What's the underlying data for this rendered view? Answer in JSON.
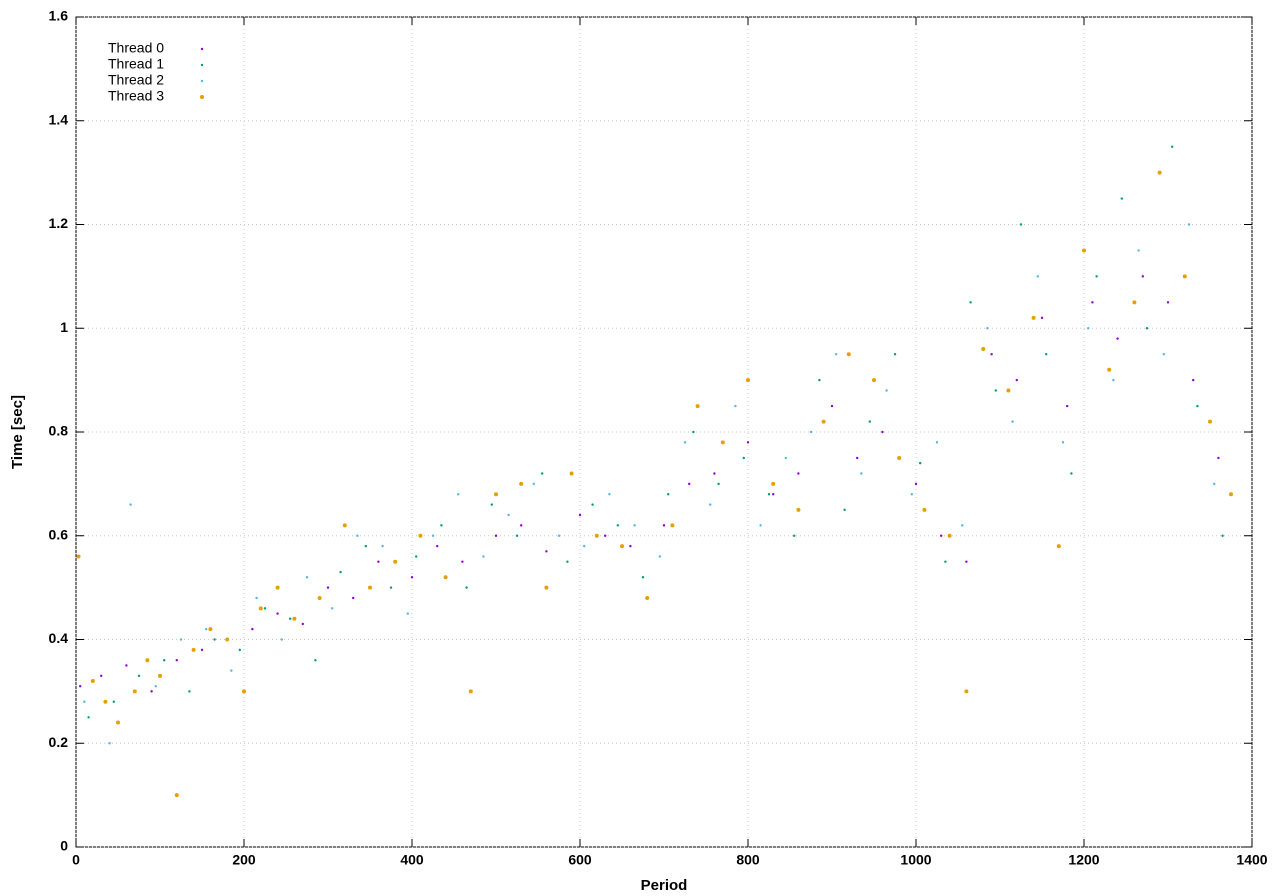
{
  "chart_data": {
    "type": "scatter",
    "x_label": "Period",
    "y_label": "Time [sec]",
    "xlim": [
      0,
      1400
    ],
    "xticks": [
      0,
      200,
      400,
      600,
      800,
      1000,
      1200,
      1400
    ],
    "ylim": [
      0,
      1.6
    ],
    "yticks": [
      0,
      0.2,
      0.4,
      0.6,
      0.8,
      1,
      1.2,
      1.4,
      1.6
    ],
    "grid": true,
    "legend": "top-left",
    "series": [
      {
        "name": "Thread 0",
        "color": "#9400d3",
        "x": [
          5,
          30,
          60,
          90,
          120,
          150,
          180,
          210,
          240,
          270,
          300,
          330,
          360,
          400,
          430,
          460,
          500,
          530,
          560,
          600,
          630,
          660,
          700,
          730,
          760,
          800,
          830,
          860,
          900,
          930,
          960,
          1000,
          1030,
          1060,
          1090,
          1120,
          1150,
          1180,
          1210,
          1240,
          1270,
          1300,
          1330,
          1360
        ],
        "values": [
          0.31,
          0.33,
          0.35,
          0.3,
          0.36,
          0.38,
          0.4,
          0.42,
          0.45,
          0.43,
          0.5,
          0.48,
          0.55,
          0.52,
          0.58,
          0.55,
          0.6,
          0.62,
          0.57,
          0.64,
          0.6,
          0.58,
          0.62,
          0.7,
          0.72,
          0.78,
          0.68,
          0.72,
          0.85,
          0.75,
          0.8,
          0.7,
          0.6,
          0.55,
          0.95,
          0.9,
          1.02,
          0.85,
          1.05,
          0.98,
          1.1,
          1.05,
          0.9,
          0.75
        ]
      },
      {
        "name": "Thread 1",
        "color": "#009e73",
        "x": [
          15,
          45,
          75,
          105,
          135,
          165,
          195,
          225,
          255,
          285,
          315,
          345,
          375,
          405,
          435,
          465,
          495,
          525,
          555,
          585,
          615,
          645,
          675,
          705,
          735,
          765,
          795,
          825,
          855,
          885,
          915,
          945,
          975,
          1005,
          1035,
          1065,
          1095,
          1125,
          1155,
          1185,
          1215,
          1245,
          1275,
          1305,
          1335,
          1365
        ],
        "values": [
          0.25,
          0.28,
          0.33,
          0.36,
          0.3,
          0.4,
          0.38,
          0.46,
          0.44,
          0.36,
          0.53,
          0.58,
          0.5,
          0.56,
          0.62,
          0.5,
          0.66,
          0.6,
          0.72,
          0.55,
          0.66,
          0.62,
          0.52,
          0.68,
          0.8,
          0.7,
          0.75,
          0.68,
          0.6,
          0.9,
          0.65,
          0.82,
          0.95,
          0.74,
          0.55,
          1.05,
          0.88,
          1.2,
          0.95,
          0.72,
          1.1,
          1.25,
          1.0,
          1.35,
          0.85,
          0.6
        ]
      },
      {
        "name": "Thread 2",
        "color": "#56b4e9",
        "x": [
          10,
          40,
          65,
          95,
          125,
          155,
          185,
          215,
          245,
          275,
          305,
          335,
          365,
          395,
          425,
          455,
          485,
          515,
          545,
          575,
          605,
          635,
          665,
          695,
          725,
          755,
          785,
          815,
          845,
          875,
          905,
          935,
          965,
          995,
          1025,
          1055,
          1085,
          1115,
          1145,
          1175,
          1205,
          1235,
          1265,
          1295,
          1325,
          1355
        ],
        "values": [
          0.28,
          0.2,
          0.66,
          0.31,
          0.4,
          0.42,
          0.34,
          0.48,
          0.4,
          0.52,
          0.46,
          0.6,
          0.58,
          0.45,
          0.6,
          0.68,
          0.56,
          0.64,
          0.7,
          0.6,
          0.58,
          0.68,
          0.62,
          0.56,
          0.78,
          0.66,
          0.85,
          0.62,
          0.75,
          0.8,
          0.95,
          0.72,
          0.88,
          0.68,
          0.78,
          0.62,
          1.0,
          0.82,
          1.1,
          0.78,
          1.0,
          0.9,
          1.15,
          0.95,
          1.2,
          0.7
        ]
      },
      {
        "name": "Thread 3",
        "color": "#e69f00",
        "x": [
          3,
          20,
          35,
          50,
          70,
          85,
          100,
          120,
          140,
          160,
          180,
          200,
          220,
          240,
          260,
          290,
          320,
          350,
          380,
          410,
          440,
          470,
          500,
          530,
          560,
          590,
          620,
          650,
          680,
          710,
          740,
          770,
          800,
          830,
          860,
          890,
          920,
          950,
          980,
          1010,
          1040,
          1060,
          1080,
          1110,
          1140,
          1170,
          1200,
          1230,
          1260,
          1290,
          1320,
          1350,
          1375
        ],
        "values": [
          0.56,
          0.32,
          0.28,
          0.24,
          0.3,
          0.36,
          0.33,
          0.1,
          0.38,
          0.42,
          0.4,
          0.3,
          0.46,
          0.5,
          0.44,
          0.48,
          0.62,
          0.5,
          0.55,
          0.6,
          0.52,
          0.3,
          0.68,
          0.7,
          0.5,
          0.72,
          0.6,
          0.58,
          0.48,
          0.62,
          0.85,
          0.78,
          0.9,
          0.7,
          0.65,
          0.82,
          0.95,
          0.9,
          0.75,
          0.65,
          0.6,
          0.3,
          0.96,
          0.88,
          1.02,
          0.58,
          1.15,
          0.92,
          1.05,
          1.3,
          1.1,
          0.82,
          0.68
        ]
      }
    ]
  }
}
